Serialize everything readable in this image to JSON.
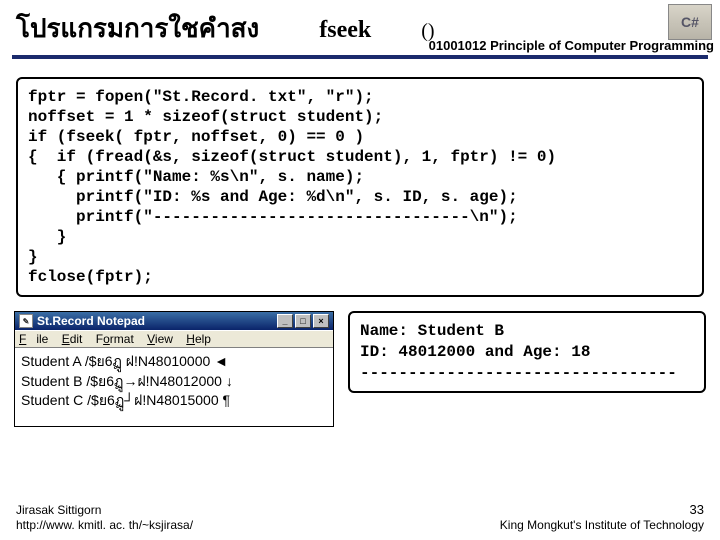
{
  "header": {
    "thai_title": "โปรแกรมการใชคำสง",
    "en_title": "fseek",
    "paren": "()",
    "course": "01001012 Principle of Computer Programming",
    "logo": "C#"
  },
  "code": "fptr = fopen(\"St.Record. txt\", \"r\");\nnoffset = 1 * sizeof(struct student);\nif (fseek( fptr, noffset, 0) == 0 )\n{  if (fread(&s, sizeof(struct student), 1, fptr) != 0)\n   { printf(\"Name: %s\\n\", s. name);\n     printf(\"ID: %s and Age: %d\\n\", s. ID, s. age);\n     printf(\"---------------------------------\\n\");\n   }\n}\nfclose(fptr);",
  "notepad": {
    "title": "St.Record   Notepad",
    "menu": {
      "file": "File",
      "edit": "Edit",
      "format": "Format",
      "view": "View",
      "help": "Help"
    },
    "lines": [
      "Student A /$ย6ฏู  ฝ!N48010000 ◄",
      "Student B /$ย6ฏู→ฝ!N48012000 ↓",
      "Student C /$ย6ฏู┘ฝ!N48015000 ¶"
    ],
    "btn_min": "_",
    "btn_max": "□",
    "btn_close": "×"
  },
  "output": "Name: Student B\nID: 48012000 and Age: 18\n---------------------------------",
  "footer": {
    "author": "Jirasak Sittigorn",
    "url": "http://www. kmitl. ac. th/~ksjirasa/",
    "page": "33",
    "inst": "King Mongkut's Institute of Technology"
  }
}
